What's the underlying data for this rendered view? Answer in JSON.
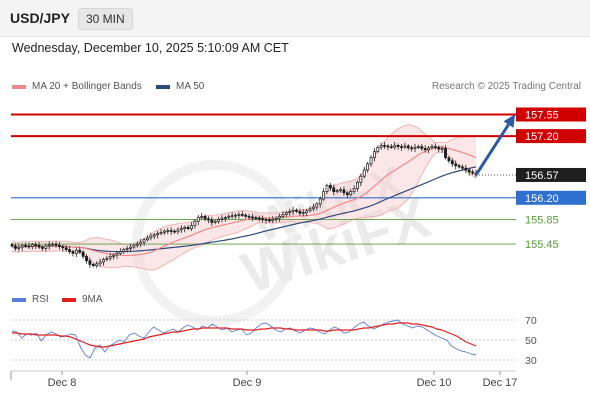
{
  "header": {
    "symbol": "USD/JPY",
    "timeframe": "30 MIN"
  },
  "datetime": "Wednesday, December 10, 2025 5:10:09 AM CET",
  "legend": {
    "ma20": {
      "label": "MA 20 + Bollinger Bands",
      "color": "#f08a8a"
    },
    "ma50": {
      "label": "MA 50",
      "color": "#2e4a7a"
    },
    "credit": "Research © 2025 Trading Central"
  },
  "rsi_legend": {
    "rsi": {
      "label": "RSI",
      "color": "#5b7fd6"
    },
    "ma9": {
      "label": "9MA",
      "color": "#e02020"
    }
  },
  "watermark": "WikiFX",
  "chart_data": [
    {
      "type": "candlestick",
      "x_ticks": [
        "Dec 8",
        "Dec 9",
        "Dec 10",
        "Dec 17"
      ],
      "ylim": [
        154.9,
        157.85
      ],
      "last_price": {
        "value": 156.57,
        "label": "156.57"
      },
      "levels": [
        {
          "value": 157.55,
          "label": "157.55",
          "kind": "resistance",
          "color": "#d00000"
        },
        {
          "value": 157.2,
          "label": "157.20",
          "kind": "resistance",
          "color": "#d00000"
        },
        {
          "value": 156.2,
          "label": "156.20",
          "kind": "pivot",
          "color": "#2f6fce"
        },
        {
          "value": 155.85,
          "label": "155.85",
          "kind": "support",
          "color": "#5a9a3c"
        },
        {
          "value": 155.45,
          "label": "155.45",
          "kind": "support",
          "color": "#5a9a3c"
        }
      ],
      "closes": [
        155.42,
        155.38,
        155.4,
        155.43,
        155.42,
        155.41,
        155.44,
        155.43,
        155.4,
        155.38,
        155.42,
        155.44,
        155.45,
        155.43,
        155.41,
        155.39,
        155.36,
        155.33,
        155.3,
        155.35,
        155.32,
        155.25,
        155.18,
        155.12,
        155.1,
        155.13,
        155.16,
        155.2,
        155.22,
        155.25,
        155.27,
        155.3,
        155.33,
        155.36,
        155.38,
        155.4,
        155.43,
        155.45,
        155.48,
        155.52,
        155.55,
        155.58,
        155.6,
        155.62,
        155.64,
        155.66,
        155.67,
        155.66,
        155.65,
        155.68,
        155.7,
        155.72,
        155.7,
        155.75,
        155.82,
        155.88,
        155.9,
        155.86,
        155.84,
        155.8,
        155.82,
        155.85,
        155.87,
        155.88,
        155.9,
        155.91,
        155.92,
        155.93,
        155.92,
        155.9,
        155.89,
        155.88,
        155.87,
        155.86,
        155.85,
        155.84,
        155.83,
        155.85,
        155.87,
        155.9,
        155.93,
        155.96,
        155.98,
        156.0,
        155.98,
        155.95,
        155.96,
        155.99,
        156.02,
        156.05,
        156.1,
        156.18,
        156.3,
        156.4,
        156.36,
        156.3,
        156.32,
        156.33,
        156.28,
        156.25,
        156.3,
        156.35,
        156.45,
        156.55,
        156.65,
        156.75,
        156.85,
        156.95,
        157.02,
        157.05,
        157.04,
        157.03,
        157.02,
        157.05,
        157.03,
        157.02,
        157.04,
        157.01,
        157.0,
        157.02,
        157.03,
        157.0,
        156.98,
        157.01,
        157.03,
        157.02,
        156.99,
        157.0,
        156.85,
        156.8,
        156.75,
        156.72,
        156.7,
        156.68,
        156.65,
        156.62,
        156.6,
        156.57
      ],
      "forecast": {
        "from": 156.57,
        "to": 157.55
      }
    },
    {
      "type": "line",
      "title": "RSI",
      "yticks": [
        70,
        50,
        30
      ],
      "ylim": [
        22,
        78
      ],
      "series": [
        {
          "name": "RSI",
          "values": [
            59,
            58,
            52,
            56,
            55,
            57,
            49,
            55,
            58,
            56,
            53,
            54,
            56,
            55,
            43,
            35,
            32,
            42,
            45,
            38,
            44,
            47,
            50,
            48,
            55,
            57,
            54,
            52,
            58,
            63,
            60,
            57,
            59,
            61,
            58,
            62,
            65,
            63,
            60,
            64,
            62,
            66,
            63,
            60,
            62,
            58,
            60,
            61,
            55,
            57,
            62,
            66,
            67,
            64,
            60,
            58,
            61,
            62,
            59,
            57,
            60,
            62,
            61,
            58,
            56,
            60,
            63,
            61,
            57,
            58,
            62,
            66,
            68,
            64,
            61,
            63,
            66,
            68,
            69,
            70,
            66,
            64,
            62,
            64,
            63,
            60,
            57,
            54,
            52,
            50,
            44,
            41,
            39,
            38,
            36,
            35
          ]
        },
        {
          "name": "9MA",
          "values": [
            57,
            57,
            56,
            56,
            56,
            55,
            55,
            55,
            55,
            55,
            54,
            54,
            53,
            51,
            49,
            47,
            45,
            44,
            43,
            43,
            44,
            45,
            46,
            47,
            48,
            49,
            50,
            51,
            53,
            54,
            55,
            56,
            57,
            58,
            58,
            59,
            60,
            61,
            61,
            62,
            62,
            62,
            62,
            62,
            62,
            61,
            61,
            61,
            60,
            60,
            60,
            61,
            61,
            62,
            62,
            62,
            61,
            61,
            60,
            60,
            60,
            60,
            60,
            60,
            59,
            59,
            60,
            60,
            60,
            60,
            60,
            61,
            62,
            62,
            63,
            64,
            65,
            66,
            66,
            67,
            67,
            67,
            66,
            66,
            65,
            64,
            63,
            61,
            60,
            58,
            56,
            54,
            51,
            48,
            46,
            44
          ]
        }
      ]
    }
  ]
}
